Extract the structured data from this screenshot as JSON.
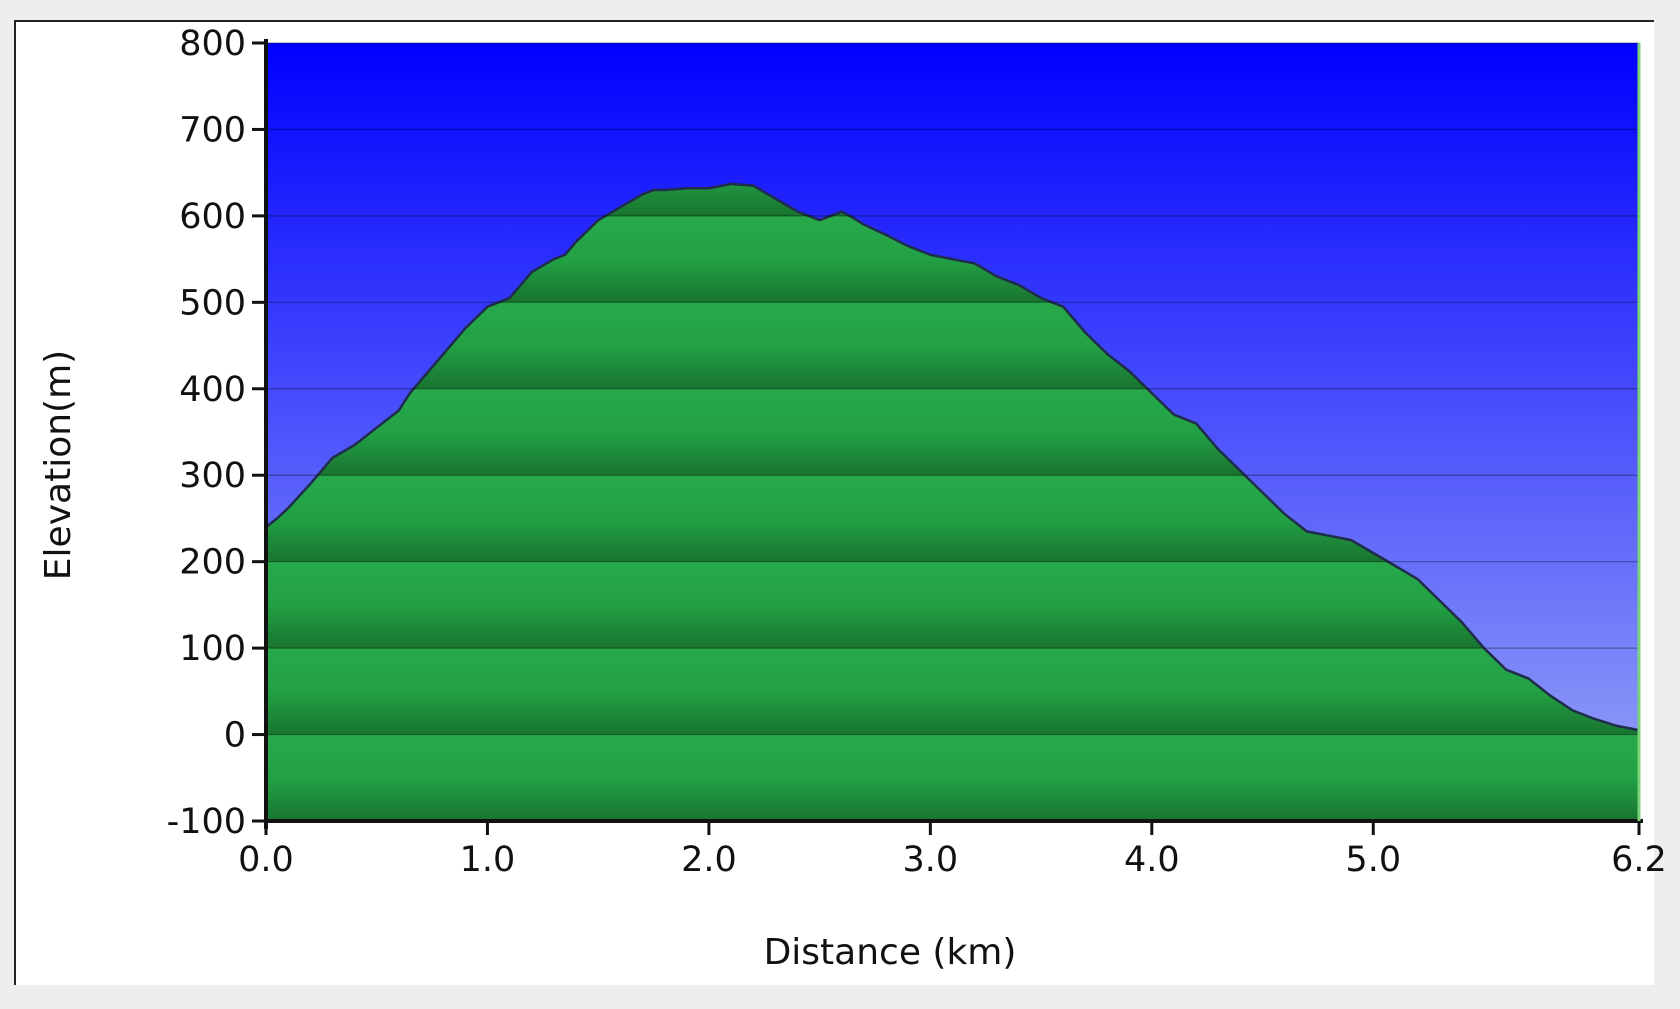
{
  "chart_data": {
    "type": "area",
    "xlabel": "Distance (km)",
    "ylabel": "Elevation(m)",
    "xlim": [
      0,
      6.2
    ],
    "ylim": [
      -100,
      800
    ],
    "x_ticks": [
      0,
      1,
      2,
      3,
      4,
      5,
      6.2
    ],
    "x_tick_labels": [
      "0.0",
      "1.0",
      "2.0",
      "3.0",
      "4.0",
      "5.0",
      "6.2"
    ],
    "y_ticks": [
      -100,
      0,
      100,
      200,
      300,
      400,
      500,
      600,
      700,
      800
    ],
    "y_tick_labels": [
      "-100",
      "0",
      "100",
      "200",
      "300",
      "400",
      "500",
      "600",
      "700",
      "800"
    ],
    "grid": true,
    "colors": {
      "sky_top": "#0000ff",
      "sky_bottom": "#9aa7f7",
      "fill_light": "#27a94b",
      "fill_dark": "#18732f",
      "outline": "#1f2d4a"
    },
    "series": [
      {
        "x": [
          0.0,
          0.05,
          0.1,
          0.2,
          0.3,
          0.4,
          0.5,
          0.6,
          0.65,
          0.7,
          0.8,
          0.9,
          1.0,
          1.1,
          1.15,
          1.2,
          1.3,
          1.35,
          1.4,
          1.5,
          1.6,
          1.7,
          1.75,
          1.8,
          1.9,
          2.0,
          2.1,
          2.2,
          2.3,
          2.4,
          2.5,
          2.55,
          2.6,
          2.65,
          2.7,
          2.8,
          2.9,
          3.0,
          3.1,
          3.2,
          3.3,
          3.4,
          3.5,
          3.6,
          3.7,
          3.8,
          3.9,
          4.0,
          4.1,
          4.2,
          4.3,
          4.4,
          4.5,
          4.6,
          4.7,
          4.8,
          4.9,
          5.0,
          5.1,
          5.2,
          5.3,
          5.4,
          5.5,
          5.6,
          5.7,
          5.75,
          5.8,
          5.9,
          6.0,
          6.1,
          6.2
        ],
        "y": [
          240,
          250,
          262,
          290,
          320,
          335,
          355,
          375,
          395,
          410,
          440,
          470,
          495,
          505,
          520,
          535,
          550,
          555,
          570,
          595,
          610,
          625,
          630,
          630,
          632,
          632,
          637,
          635,
          620,
          605,
          595,
          600,
          605,
          598,
          590,
          578,
          565,
          555,
          550,
          545,
          530,
          520,
          505,
          495,
          465,
          440,
          420,
          395,
          370,
          360,
          330,
          305,
          280,
          255,
          235,
          230,
          225,
          210,
          195,
          180,
          155,
          130,
          100,
          75,
          65,
          55,
          45,
          28,
          18,
          10,
          5
        ]
      }
    ]
  }
}
